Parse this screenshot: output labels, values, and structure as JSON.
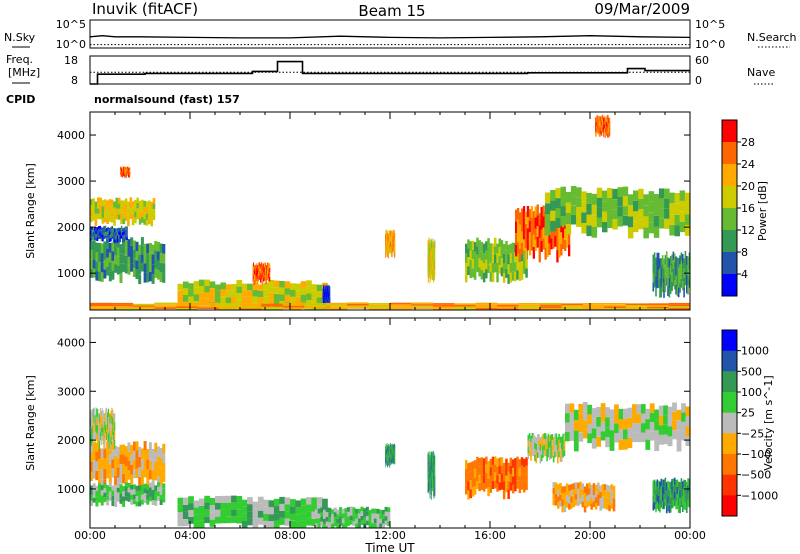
{
  "header": {
    "station": "Inuvik (fitACF)",
    "beam": "Beam 15",
    "date": "09/Mar/2009"
  },
  "sky_panel": {
    "left_label": "N.Sky",
    "left_ticks": [
      "10^5",
      "10^0"
    ],
    "right_ticks": [
      "10^5",
      "10^0"
    ],
    "right_label": "N.Search"
  },
  "freq_panel": {
    "left_label_1": "Freq.",
    "left_label_2": "[MHz]",
    "left_ticks": [
      "18",
      "8"
    ],
    "right_ticks": [
      "60",
      "0"
    ],
    "right_label": "Nave",
    "cpid_label": "CPID",
    "cpid_text": "normalsound (fast) 157"
  },
  "chart_data": [
    {
      "type": "line",
      "title": "N.Sky / N.Search",
      "x": [
        0,
        0.5,
        1,
        2,
        4,
        6,
        8,
        10,
        12,
        14,
        16,
        18,
        20,
        22,
        24
      ],
      "series": [
        {
          "name": "N.Sky",
          "values": [
            2.0,
            2.2,
            2.0,
            2.0,
            1.9,
            1.8,
            1.8,
            2.1,
            1.9,
            1.8,
            1.9,
            2.0,
            2.2,
            2.0,
            1.9
          ]
        },
        {
          "name": "N.Search",
          "values": [
            0.6,
            0.6,
            0.6,
            0.6,
            0.6,
            0.6,
            0.6,
            0.6,
            0.6,
            0.6,
            0.6,
            0.6,
            0.6,
            0.6,
            0.6
          ]
        }
      ],
      "ylim": [
        0,
        5
      ],
      "xlim": [
        0,
        24
      ]
    },
    {
      "type": "line",
      "title": "Freq. / Nave",
      "series": [
        {
          "name": "Freq. [MHz]",
          "steps": [
            [
              0,
              0.3,
              8
            ],
            [
              0.3,
              2.2,
              11.5
            ],
            [
              2.2,
              6.5,
              11.8
            ],
            [
              6.5,
              7.5,
              12.5
            ],
            [
              7.5,
              8.5,
              16
            ],
            [
              8.5,
              17.5,
              11.8
            ],
            [
              17.5,
              21.5,
              12.0
            ],
            [
              21.5,
              22.2,
              13.5
            ],
            [
              22.2,
              24,
              12.8
            ]
          ]
        },
        {
          "name": "Nave",
          "steps": [
            [
              0,
              24,
              25
            ]
          ]
        }
      ],
      "ylim": [
        8,
        18
      ],
      "y2lim": [
        0,
        60
      ]
    },
    {
      "type": "heatmap",
      "title": "Power",
      "ylabel": "Slant Range [km]",
      "colorbar_label": "Power [dB]",
      "colorbar_ticks": [
        "28",
        "24",
        "20",
        "16",
        "12",
        "8",
        "4"
      ],
      "colorbar_colors": [
        "#ff0000",
        "#ff6600",
        "#ffaa00",
        "#cccc00",
        "#66bb33",
        "#339955",
        "#2255aa",
        "#0000ff"
      ],
      "ylim": [
        200,
        4500
      ],
      "yticks": [
        1000,
        2000,
        3000,
        4000
      ],
      "xlim": [
        0,
        24
      ],
      "regions": [
        {
          "t0": 0.0,
          "t1": 3.0,
          "r0": 900,
          "r1": 1700,
          "level": 5
        },
        {
          "t0": 0.0,
          "t1": 1.5,
          "r0": 1700,
          "r1": 2000,
          "level": 6
        },
        {
          "t0": 0.0,
          "t1": 2.6,
          "r0": 2100,
          "r1": 2600,
          "level": 3
        },
        {
          "t0": 1.2,
          "t1": 1.6,
          "r0": 3100,
          "r1": 3300,
          "level": 1
        },
        {
          "t0": 3.5,
          "t1": 9.5,
          "r0": 200,
          "r1": 800,
          "level": 3
        },
        {
          "t0": 6.5,
          "t1": 7.2,
          "r0": 800,
          "r1": 1200,
          "level": 1
        },
        {
          "t0": 9.3,
          "t1": 9.6,
          "r0": 200,
          "r1": 700,
          "level": 7
        },
        {
          "t0": 11.8,
          "t1": 12.2,
          "r0": 1400,
          "r1": 1900,
          "level": 2
        },
        {
          "t0": 13.5,
          "t1": 13.8,
          "r0": 900,
          "r1": 1700,
          "level": 3
        },
        {
          "t0": 15.0,
          "t1": 17.5,
          "r0": 900,
          "r1": 1700,
          "level": 4
        },
        {
          "t0": 17.0,
          "t1": 19.2,
          "r0": 1400,
          "r1": 2400,
          "level": 1
        },
        {
          "t0": 18.2,
          "t1": 24.0,
          "r0": 1900,
          "r1": 2800,
          "level": 4
        },
        {
          "t0": 22.5,
          "t1": 24.0,
          "r0": 600,
          "r1": 1400,
          "level": 5
        },
        {
          "t0": 20.2,
          "t1": 20.8,
          "r0": 4000,
          "r1": 4400,
          "level": 1
        },
        {
          "t0": 0.0,
          "t1": 24.0,
          "r0": 200,
          "r1": 350,
          "level": 2
        }
      ]
    },
    {
      "type": "heatmap",
      "title": "Velocity",
      "ylabel": "Slant Range [km]",
      "xlabel": "Time UT",
      "colorbar_label": "Velocity [m s^-1]",
      "colorbar_ticks": [
        "1000",
        "500",
        "100",
        "25",
        "−25",
        "−100",
        "−500",
        "−1000"
      ],
      "colorbar_colors": [
        "#0000ff",
        "#2255aa",
        "#339955",
        "#33cc33",
        "#bbbbbb",
        "#ffaa00",
        "#ff7700",
        "#ff3300",
        "#ff0000"
      ],
      "ylim": [
        200,
        4500
      ],
      "yticks": [
        1000,
        2000,
        3000,
        4000
      ],
      "xticks": [
        "00:00",
        "04:00",
        "08:00",
        "12:00",
        "16:00",
        "20:00",
        "00:00"
      ],
      "xlim": [
        0,
        24
      ],
      "regions": [
        {
          "t0": 0.0,
          "t1": 3.0,
          "r0": 1100,
          "r1": 1900,
          "level": 5
        },
        {
          "t0": 0.0,
          "t1": 1.0,
          "r0": 1900,
          "r1": 2600,
          "level": 4
        },
        {
          "t0": 0.0,
          "t1": 3.0,
          "r0": 700,
          "r1": 1100,
          "level": 3
        },
        {
          "t0": 3.5,
          "t1": 9.5,
          "r0": 200,
          "r1": 800,
          "level": 3
        },
        {
          "t0": 9.0,
          "t1": 12.0,
          "r0": 200,
          "r1": 600,
          "level": 3
        },
        {
          "t0": 11.8,
          "t1": 12.2,
          "r0": 1500,
          "r1": 1900,
          "level": 2
        },
        {
          "t0": 13.5,
          "t1": 13.8,
          "r0": 900,
          "r1": 1700,
          "level": 2
        },
        {
          "t0": 15.0,
          "t1": 17.5,
          "r0": 900,
          "r1": 1600,
          "level": 6
        },
        {
          "t0": 17.5,
          "t1": 19.0,
          "r0": 1600,
          "r1": 2100,
          "level": 4
        },
        {
          "t0": 19.0,
          "t1": 24.0,
          "r0": 1900,
          "r1": 2700,
          "level": 4
        },
        {
          "t0": 22.5,
          "t1": 24.0,
          "r0": 600,
          "r1": 1200,
          "level": 2
        },
        {
          "t0": 18.5,
          "t1": 21.0,
          "r0": 600,
          "r1": 1100,
          "level": 5
        }
      ]
    }
  ]
}
